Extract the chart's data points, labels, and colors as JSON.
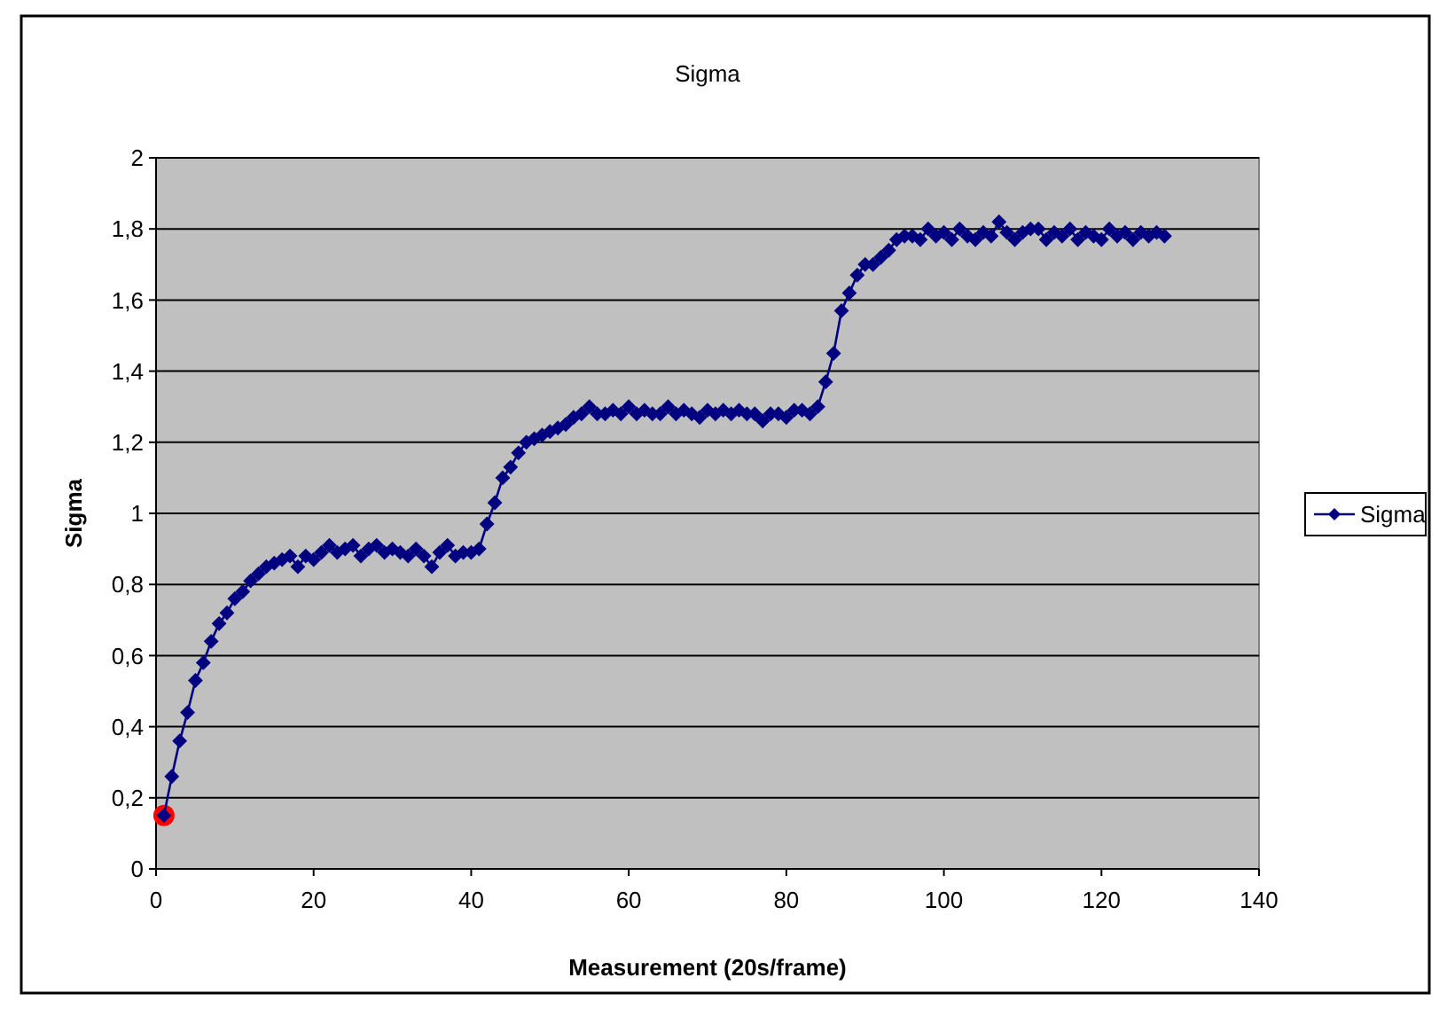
{
  "chart_data": {
    "type": "line",
    "title": "Sigma",
    "xlabel": "Measurement (20s/frame)",
    "ylabel": "Sigma",
    "xlim": [
      0,
      140
    ],
    "xticks": [
      0,
      20,
      40,
      60,
      80,
      100,
      120,
      140
    ],
    "ylim": [
      0,
      2
    ],
    "yticks": [
      0,
      {
        "value": 0.2,
        "label": "0,2"
      },
      {
        "value": 0.4,
        "label": "0,4"
      },
      {
        "value": 0.6,
        "label": "0,6"
      },
      {
        "value": 0.8,
        "label": "0,8"
      },
      1,
      {
        "value": 1.2,
        "label": "1,2"
      },
      {
        "value": 1.4,
        "label": "1,4"
      },
      {
        "value": 1.6,
        "label": "1,6"
      },
      {
        "value": 1.8,
        "label": "1,8"
      },
      2
    ],
    "grid": "y",
    "legend": "right",
    "marker": "diamond",
    "line_style": "solid",
    "series": [
      {
        "name": "Sigma",
        "color": "#000080",
        "x": [
          1,
          2,
          3,
          4,
          5,
          6,
          7,
          8,
          9,
          10,
          11,
          12,
          13,
          14,
          15,
          16,
          17,
          18,
          19,
          20,
          21,
          22,
          23,
          24,
          25,
          26,
          27,
          28,
          29,
          30,
          31,
          32,
          33,
          34,
          35,
          36,
          37,
          38,
          39,
          40,
          41,
          42,
          43,
          44,
          45,
          46,
          47,
          48,
          49,
          50,
          51,
          52,
          53,
          54,
          55,
          56,
          57,
          58,
          59,
          60,
          61,
          62,
          63,
          64,
          65,
          66,
          67,
          68,
          69,
          70,
          71,
          72,
          73,
          74,
          75,
          76,
          77,
          78,
          79,
          80,
          81,
          82,
          83,
          84,
          85,
          86,
          87,
          88,
          89,
          90,
          91,
          92,
          93,
          94,
          95,
          96,
          97,
          98,
          99,
          100,
          101,
          102,
          103,
          104,
          105,
          106,
          107,
          108,
          109,
          110,
          111,
          112,
          113,
          114,
          115,
          116,
          117,
          118,
          119,
          120,
          121,
          122,
          123,
          124,
          125,
          126,
          127,
          128
        ],
        "values": [
          0.15,
          0.26,
          0.36,
          0.44,
          0.53,
          0.58,
          0.64,
          0.69,
          0.72,
          0.76,
          0.78,
          0.81,
          0.83,
          0.85,
          0.86,
          0.87,
          0.88,
          0.85,
          0.88,
          0.87,
          0.89,
          0.91,
          0.89,
          0.9,
          0.91,
          0.88,
          0.9,
          0.91,
          0.89,
          0.9,
          0.89,
          0.88,
          0.9,
          0.88,
          0.85,
          0.89,
          0.91,
          0.88,
          0.89,
          0.89,
          0.9,
          0.97,
          1.03,
          1.1,
          1.13,
          1.17,
          1.2,
          1.21,
          1.22,
          1.23,
          1.24,
          1.25,
          1.27,
          1.28,
          1.3,
          1.28,
          1.28,
          1.29,
          1.28,
          1.3,
          1.28,
          1.29,
          1.28,
          1.28,
          1.3,
          1.28,
          1.29,
          1.28,
          1.27,
          1.29,
          1.28,
          1.29,
          1.28,
          1.29,
          1.28,
          1.28,
          1.26,
          1.28,
          1.28,
          1.27,
          1.29,
          1.29,
          1.28,
          1.3,
          1.37,
          1.45,
          1.57,
          1.62,
          1.67,
          1.7,
          1.7,
          1.72,
          1.74,
          1.77,
          1.78,
          1.78,
          1.77,
          1.8,
          1.78,
          1.79,
          1.77,
          1.8,
          1.78,
          1.77,
          1.79,
          1.78,
          1.82,
          1.79,
          1.77,
          1.79,
          1.8,
          1.8,
          1.77,
          1.79,
          1.78,
          1.8,
          1.77,
          1.79,
          1.78,
          1.77,
          1.8,
          1.78,
          1.79,
          1.77,
          1.79,
          1.78,
          1.79,
          1.78
        ]
      },
      {
        "type": "scatter",
        "color": "#ff0000",
        "marker": "circle",
        "x": [
          1
        ],
        "values": [
          0.15
        ]
      }
    ]
  }
}
